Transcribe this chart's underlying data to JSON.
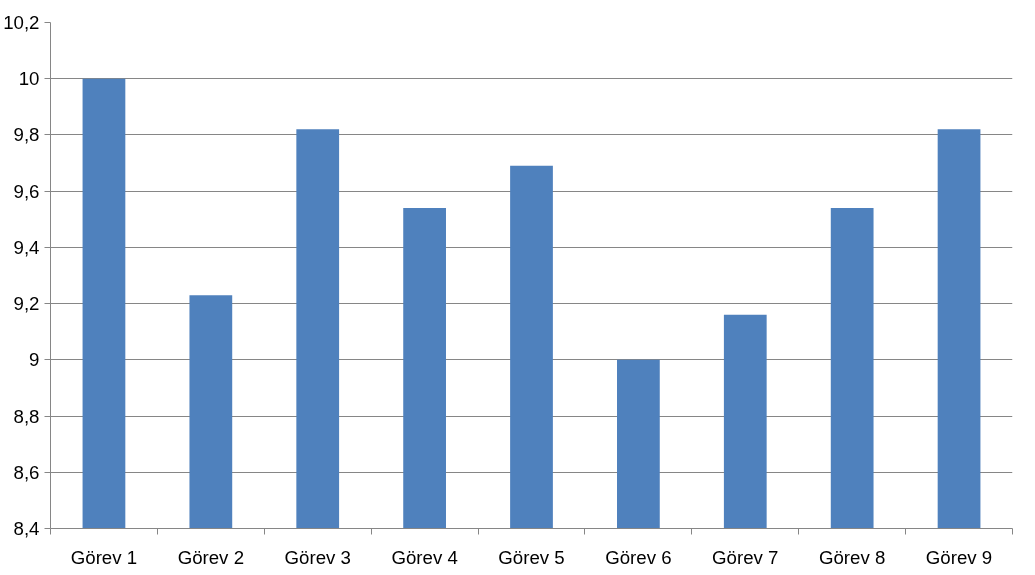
{
  "chart_data": {
    "type": "bar",
    "categories": [
      "Görev 1",
      "Görev 2",
      "Görev 3",
      "Görev 4",
      "Görev 5",
      "Görev 6",
      "Görev 7",
      "Görev 8",
      "Görev 9"
    ],
    "values": [
      10.0,
      9.23,
      9.82,
      9.54,
      9.69,
      9.0,
      9.16,
      9.54,
      9.82
    ],
    "color": "#4f81bd",
    "ylim": [
      8.4,
      10.2
    ],
    "yticks": [
      {
        "value": 8.4,
        "label": "8,4"
      },
      {
        "value": 8.6,
        "label": "8,6"
      },
      {
        "value": 8.8,
        "label": "8,8"
      },
      {
        "value": 9,
        "label": "9"
      },
      {
        "value": 9.2,
        "label": "9,2"
      },
      {
        "value": 9.4,
        "label": "9,4"
      },
      {
        "value": 9.6,
        "label": "9,6"
      },
      {
        "value": 9.8,
        "label": "9,8"
      },
      {
        "value": 10,
        "label": "10"
      },
      {
        "value": 10.2,
        "label": "10,2"
      }
    ],
    "grid": "y"
  }
}
